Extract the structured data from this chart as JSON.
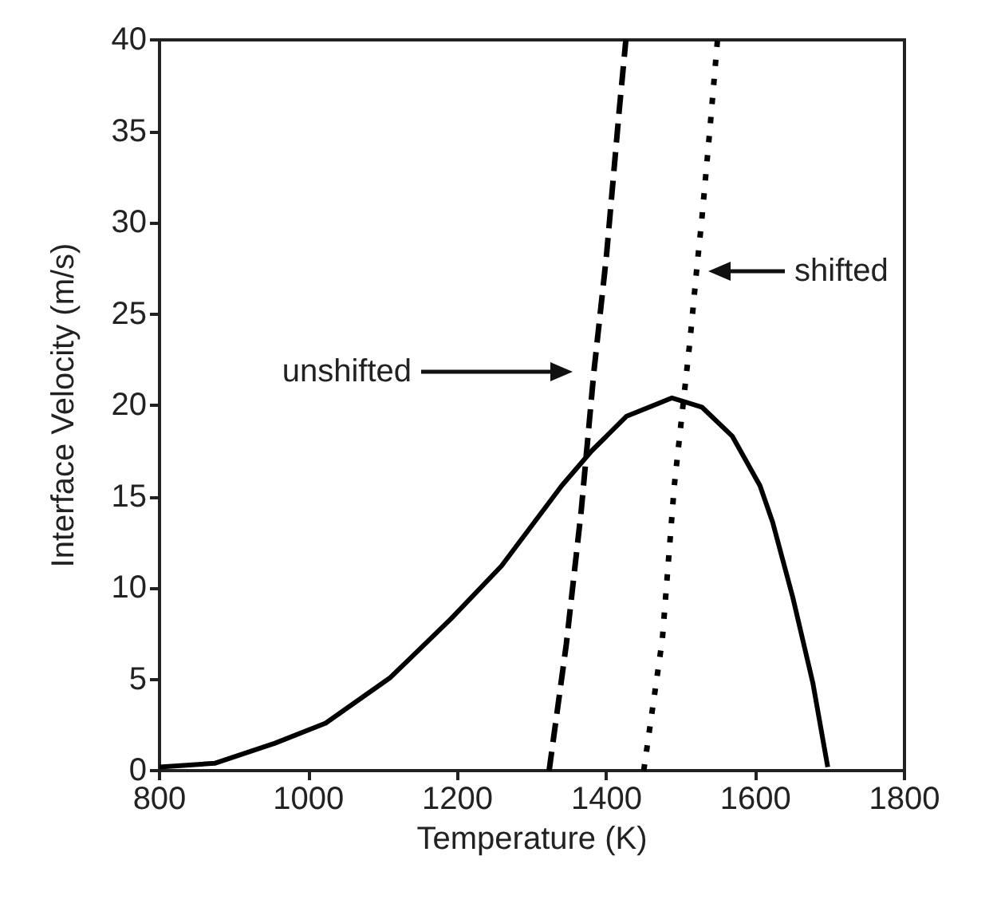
{
  "chart_data": {
    "type": "line",
    "xlabel": "Temperature (K)",
    "ylabel": "Interface Velocity (m/s)",
    "xlim": [
      800,
      1800
    ],
    "xticks": [
      800,
      1000,
      1200,
      1400,
      1600,
      1800
    ],
    "ylim": [
      0,
      40
    ],
    "yticks": [
      0,
      5,
      10,
      15,
      20,
      25,
      30,
      35,
      40
    ],
    "grid": false,
    "marker": "none",
    "series": [
      {
        "color": "#000000",
        "line_style": "solid",
        "x": [
          800,
          874,
          955,
          1023,
          1110,
          1191,
          1259,
          1340,
          1380,
          1427,
          1488,
          1528,
          1569,
          1606,
          1623,
          1650,
          1677,
          1697
        ],
        "values": [
          0.2,
          0.4,
          1.5,
          2.6,
          5.1,
          8.3,
          11.2,
          15.6,
          17.5,
          19.4,
          20.4,
          19.9,
          18.3,
          15.6,
          13.6,
          9.5,
          4.8,
          0.2
        ]
      },
      {
        "color": "#000000",
        "line_style": "dashed",
        "x": [
          1323,
          1346,
          1366,
          1383,
          1400,
          1417,
          1426
        ],
        "values": [
          0,
          6.9,
          14.2,
          21.8,
          28.2,
          36.1,
          40
        ]
      },
      {
        "color": "#000000",
        "line_style": "dotted",
        "x": [
          1450,
          1475,
          1491,
          1512,
          1521,
          1528,
          1539,
          1549
        ],
        "values": [
          0,
          7.2,
          15.6,
          23.5,
          27.4,
          30.2,
          35.2,
          40
        ]
      }
    ],
    "annotations": [
      "unshifted",
      "shifted"
    ]
  }
}
